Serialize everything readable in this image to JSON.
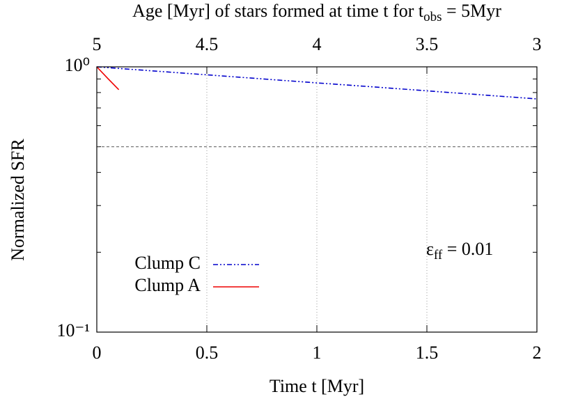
{
  "chart_data": {
    "type": "line",
    "xlabel": "Time t [Myr]",
    "ylabel": "Normalized SFR",
    "x2label": {
      "text": "Age [Myr] of stars formed at time t for t",
      "sub": "obs",
      "after": " = 5Myr"
    },
    "annotation": {
      "text": "ε",
      "sub": "ff",
      "after": " = 0.01"
    },
    "xlim": [
      0,
      2
    ],
    "xticks": [
      0,
      0.5,
      1,
      1.5,
      2
    ],
    "x2lim": [
      5,
      3
    ],
    "x2ticks": [
      5,
      4.5,
      4,
      3.5,
      3
    ],
    "ylim": [
      0.1,
      1
    ],
    "log_y": true,
    "yticks": [
      {
        "value": 0.1,
        "label": "10⁻¹"
      },
      {
        "value": 1,
        "label": "10⁰"
      }
    ],
    "yminor": [
      0.2,
      0.3,
      0.4,
      0.5,
      0.6,
      0.7,
      0.8,
      0.9
    ],
    "xgrid": true,
    "hline": 0.5,
    "legend": "lower-left",
    "series": [
      {
        "name": "Clump C",
        "color": "#0000cc",
        "dash": "7,3,2,3,2,3",
        "x": [
          0,
          0.25,
          0.5,
          0.75,
          1,
          1.25,
          1.5,
          1.75,
          2
        ],
        "values": [
          1,
          0.966,
          0.933,
          0.901,
          0.87,
          0.841,
          0.812,
          0.784,
          0.757
        ]
      },
      {
        "name": "Clump A",
        "color": "#ee0000",
        "dash": "none",
        "x": [
          0,
          0.05,
          0.1
        ],
        "values": [
          1,
          0.904,
          0.82
        ]
      }
    ]
  }
}
